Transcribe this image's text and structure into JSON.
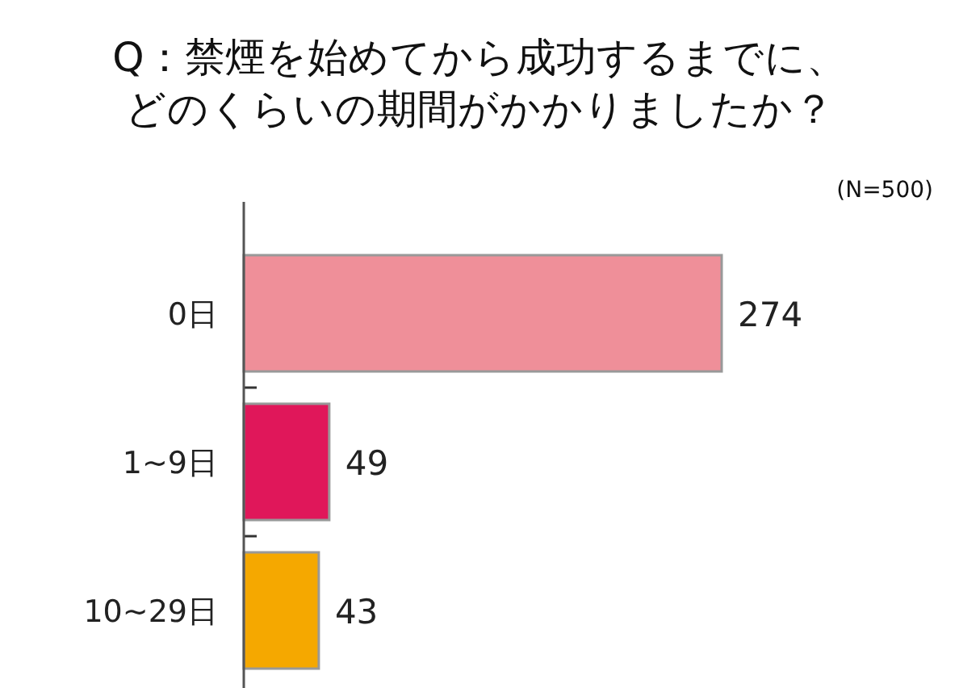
{
  "chart_data": {
    "type": "bar",
    "orientation": "horizontal",
    "title": "Q：禁煙を始めてから成功するまでに、どのくらいの期間がかかりましたか？",
    "annotations": [
      "(N=500)"
    ],
    "categories": [
      "0日",
      "1~9日",
      "10~29日"
    ],
    "values": [
      274,
      49,
      43
    ],
    "colors": [
      "#ef8f99",
      "#e0175a",
      "#f5a800"
    ],
    "data_labels": true
  }
}
